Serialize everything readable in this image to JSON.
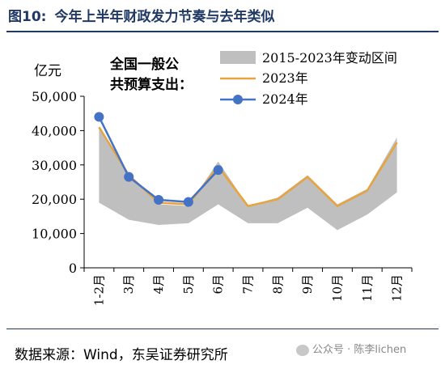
{
  "title": {
    "number": "图10:",
    "text": "今年上半年财政发力节奏与去年类似"
  },
  "source_text": "数据来源：Wind，东吴证券研究所",
  "watermark_text": "公众号 · 陈李lichen",
  "chart_data": {
    "type": "line",
    "ylabel": "亿元",
    "annotation": [
      "全国一般公",
      "共预算支出："
    ],
    "categories": [
      "1-2月",
      "3月",
      "4月",
      "5月",
      "6月",
      "7月",
      "8月",
      "9月",
      "10月",
      "11月",
      "12月"
    ],
    "ylim": [
      0,
      50000
    ],
    "yticks": [
      0,
      10000,
      20000,
      30000,
      40000,
      50000
    ],
    "ytick_labels": [
      "0",
      "10,000",
      "20,000",
      "30,000",
      "40,000",
      "50,000"
    ],
    "legend_position": "top-right",
    "range_band": {
      "name": "2015-2023年变动区间",
      "color": "#bfbfbf",
      "upper": [
        41000,
        27500,
        18500,
        18000,
        31000,
        18000,
        20500,
        27000,
        18500,
        23000,
        38000
      ],
      "lower": [
        19000,
        14000,
        12500,
        13000,
        18500,
        13000,
        13000,
        17500,
        11000,
        15500,
        22000
      ]
    },
    "series": [
      {
        "name": "2023年",
        "color": "#e8a33c",
        "values": [
          41000,
          27000,
          19000,
          18500,
          29500,
          18000,
          20000,
          26500,
          18000,
          22500,
          36500
        ]
      },
      {
        "name": "2024年",
        "color": "#4472c4",
        "values": [
          44000,
          26500,
          19800,
          19200,
          28500,
          null,
          null,
          null,
          null,
          null,
          null
        ]
      }
    ]
  }
}
